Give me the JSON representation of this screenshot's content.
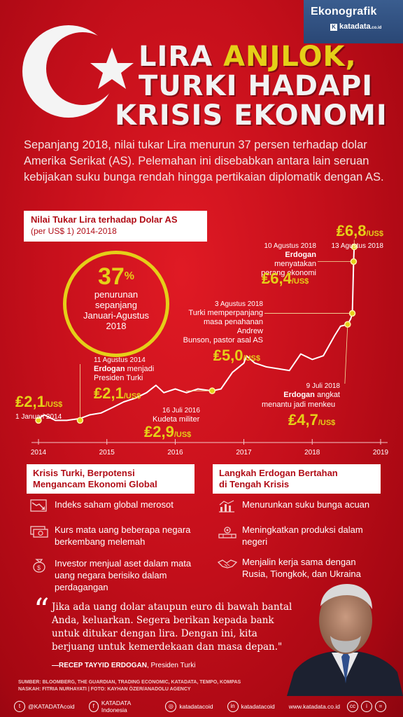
{
  "brand": {
    "name": "Ekonografik",
    "sub": "katadata",
    "sub_suffix": ".co.id"
  },
  "title": {
    "line1_a": "LIRA ",
    "line1_b": "ANJLOK,",
    "line2": "TURKI HADAPI",
    "line3": "KRISIS EKONOMI"
  },
  "intro": "Sepanjang 2018, nilai tukar Lira menurun 37 persen terhadap dolar Amerika Serikat (AS). Pelemahan ini disebabkan antara lain seruan kebijakan suku bunga rendah hingga pertikaian diplomatik dengan AS.",
  "chart_box": {
    "title": "Nilai Tukar Lira terhadap Dolar AS",
    "subtitle": "(per US$ 1) 2014-2018"
  },
  "circle": {
    "pct": "37",
    "pct_sign": "%",
    "desc1": "penurunan",
    "desc2": "sepanjang",
    "desc3": "Januari-Agustus",
    "desc4": "2018"
  },
  "annotations": {
    "jan2014": {
      "value": "₤2,1",
      "unit": "/US$",
      "date": "1 Januari 2014"
    },
    "aug2014": {
      "date": "11 Agustus 2014",
      "name": "Erdogan",
      "text1": " menjadi",
      "text2": "Presiden Turki",
      "value": "₤2,1",
      "unit": "/US$"
    },
    "jul2016": {
      "date": "16 Juli 2016",
      "text": "Kudeta militer",
      "value": "₤2,9",
      "unit": "/US$"
    },
    "aug3_2018": {
      "date": "3 Agustus  2018",
      "text1": "Turki memperpanjang",
      "text2": "masa penahanan Andrew",
      "text3": "Bunson, pastor asal AS",
      "value": "₤5,0",
      "unit": "/US$"
    },
    "jul9_2018": {
      "date": "9 Juli 2018",
      "name": "Erdogan",
      "text1": " angkat",
      "text2": "menantu jadi menkeu",
      "value": "₤4,7",
      "unit": "/US$"
    },
    "aug10_2018": {
      "date": "10 Agustus 2018",
      "name": "Erdogan",
      "text1": " menyatakan",
      "text2": "perang ekonomi",
      "value": "₤6,4",
      "unit": "/US$"
    },
    "aug13_2018": {
      "value": "₤6,8",
      "unit": "/US$",
      "date": "13 Agustus 2018"
    }
  },
  "chart_data": {
    "type": "line",
    "title": "Nilai Tukar Lira terhadap Dolar AS",
    "subtitle": "(per US$ 1) 2014-2018",
    "x_ticks": [
      "2014",
      "2015",
      "2016",
      "2017",
      "2018",
      "2019"
    ],
    "x_range": [
      "2014-01-01",
      "2019-01-01"
    ],
    "ylim": [
      1.5,
      7.0
    ],
    "grid": false,
    "color": "#ffffff",
    "series": [
      {
        "dates": [
          "2014-01-01",
          "2014-02-01",
          "2014-04-01",
          "2014-06-01",
          "2014-08-11",
          "2014-10-01",
          "2014-12-01",
          "2015-02-01",
          "2015-04-01",
          "2015-06-01",
          "2015-08-01",
          "2015-09-20",
          "2015-11-01",
          "2016-01-01",
          "2016-03-01",
          "2016-05-01",
          "2016-07-16",
          "2016-09-01",
          "2016-11-01",
          "2017-01-01",
          "2017-01-15",
          "2017-03-01",
          "2017-05-01",
          "2017-07-01",
          "2017-09-01",
          "2017-11-01",
          "2018-01-01",
          "2018-03-01",
          "2018-05-01",
          "2018-06-01",
          "2018-07-09",
          "2018-07-25",
          "2018-08-03",
          "2018-08-10",
          "2018-08-13"
        ],
        "values": [
          2.15,
          2.25,
          2.1,
          2.1,
          2.15,
          2.25,
          2.3,
          2.45,
          2.6,
          2.7,
          2.85,
          3.05,
          2.85,
          2.95,
          2.85,
          2.95,
          2.9,
          2.95,
          3.4,
          3.65,
          3.85,
          3.65,
          3.55,
          3.5,
          3.45,
          3.9,
          3.75,
          3.85,
          4.4,
          4.65,
          4.7,
          4.85,
          5.0,
          6.4,
          6.8
        ]
      }
    ],
    "markers": [
      {
        "date": "2014-01-01",
        "value": 2.1
      },
      {
        "date": "2014-08-11",
        "value": 2.1
      },
      {
        "date": "2016-07-16",
        "value": 2.9
      },
      {
        "date": "2018-07-09",
        "value": 4.7
      },
      {
        "date": "2018-08-03",
        "value": 5.0
      },
      {
        "date": "2018-08-10",
        "value": 6.4
      },
      {
        "date": "2018-08-13",
        "value": 6.8
      }
    ]
  },
  "left_section": {
    "heading1": "Krisis Turki, Berpotensi",
    "heading2": "Mengancam Ekonomi Global",
    "items": [
      {
        "icon": "stock-decline-icon",
        "text": "Indeks saham global merosot"
      },
      {
        "icon": "currency-notes-icon",
        "text": "Kurs mata uang beberapa negara berkembang melemah"
      },
      {
        "icon": "money-bag-icon",
        "text": "Investor menjual aset dalam mata uang negara berisiko dalam perdagangan"
      }
    ]
  },
  "right_section": {
    "heading1": "Langkah Erdogan Bertahan",
    "heading2": "di Tengah Krisis",
    "items": [
      {
        "icon": "rate-chart-icon",
        "text": "Menurunkan suku bunga acuan"
      },
      {
        "icon": "factory-icon",
        "text": "Meningkatkan produksi dalam negeri"
      },
      {
        "icon": "handshake-icon",
        "text": "Menjalin kerja sama dengan Rusia, Tiongkok, dan Ukraina"
      }
    ]
  },
  "quote": {
    "text": "Jika ada uang dolar ataupun euro di bawah bantal Anda, keluarkan. Segera berikan kepada bank untuk ditukar dengan lira. Dengan ini, kita berjuang untuk kemerdekaan dan masa depan.\"",
    "author": "—RECEP TAYYID ERDOGAN",
    "role": ", Presiden Turki"
  },
  "sources": {
    "line1": "SUMBER: BLOOMBERG, THE GUARDIAN, TRADING ECONOMIC, KATADATA, TEMPO, KOMPAS",
    "line2": "NASKAH: FITRIA NURHAYATI  |  FOTO: KAYHAN ÖZER/ANADOLU AGENCY"
  },
  "footer": {
    "twitter": "@KATADATAcoid",
    "facebook": "KATADATA Indonesia",
    "instagram": "katadatacoid",
    "linkedin": "katadatacoid",
    "website": "www.katadata.co.id",
    "license1": "cc",
    "license2": "i",
    "license3": "="
  },
  "colors": {
    "accent": "#e5cf18",
    "red": "#c50f1b",
    "header_blue": "#2a4775"
  }
}
